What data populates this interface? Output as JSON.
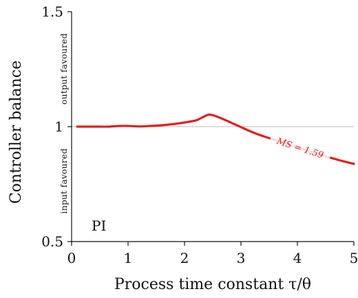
{
  "chart_data": {
    "type": "line",
    "title": "",
    "xlabel": "Process time constant τ/θ",
    "ylabel": "Controller balance",
    "xlim": [
      0,
      5
    ],
    "ylim": [
      0.5,
      1.5
    ],
    "xticks": [
      0,
      1,
      2,
      3,
      4,
      5
    ],
    "xtick_labels": [
      "0",
      "1",
      "2",
      "3",
      "4",
      "5"
    ],
    "yticks": [
      0.5,
      1,
      1.5
    ],
    "ytick_labels": [
      "0.5",
      "1",
      "1.5"
    ],
    "reference_line": {
      "y": 1,
      "color": "#c8c8c8"
    },
    "side_labels": {
      "upper": "output favoured",
      "lower": "input favoured"
    },
    "panel_label": "PI",
    "grid": false,
    "series": [
      {
        "label": "MS = 1.59",
        "color": "#e02020",
        "x": [
          0.1,
          0.3,
          0.5,
          0.65,
          0.85,
          1.0,
          1.2,
          1.4,
          1.6,
          1.8,
          2.0,
          2.2,
          2.3,
          2.4,
          2.45,
          2.55,
          2.7,
          2.9,
          3.0,
          3.2,
          3.4,
          3.6,
          3.8,
          4.0,
          4.2,
          4.4,
          4.6,
          4.8,
          5.0
        ],
        "y": [
          1.0,
          1.0,
          1.0,
          1.0,
          1.003,
          1.003,
          1.001,
          1.003,
          1.006,
          1.011,
          1.018,
          1.027,
          1.038,
          1.05,
          1.052,
          1.046,
          1.031,
          1.009,
          0.998,
          0.976,
          0.958,
          0.942,
          0.926,
          0.909,
          0.892,
          0.877,
          0.864,
          0.85,
          0.838
        ]
      }
    ]
  }
}
